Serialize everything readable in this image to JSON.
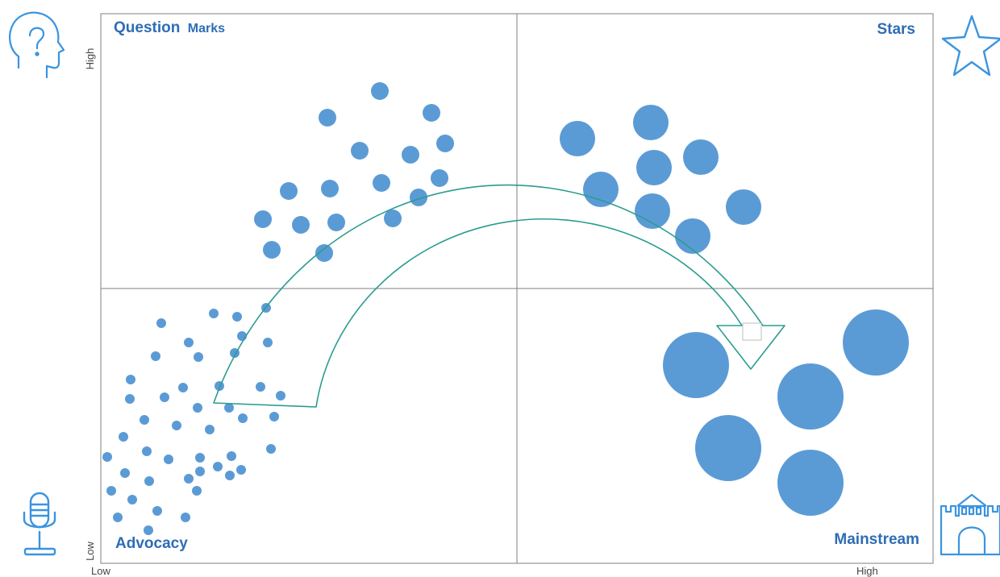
{
  "quadrants": {
    "top_left": {
      "title_bold": "Question",
      "title_rest": "Marks"
    },
    "top_right": {
      "title": "Stars"
    },
    "bottom_left": {
      "title": "Advocacy"
    },
    "bottom_right": {
      "title": "Mainstream"
    }
  },
  "axes": {
    "y_high": "High",
    "y_low": "Low",
    "x_low": "Low",
    "x_high": "High"
  },
  "icons": {
    "top_left": "head-question-icon",
    "top_right": "star-icon",
    "bottom_left": "microphone-icon",
    "bottom_right": "castle-icon"
  },
  "colors": {
    "bubble": "#5b9bd5",
    "arrow": "#2a9d8f",
    "label": "#2e6db4",
    "icon": "#3a94e0",
    "grid": "#7f7f7f"
  }
}
